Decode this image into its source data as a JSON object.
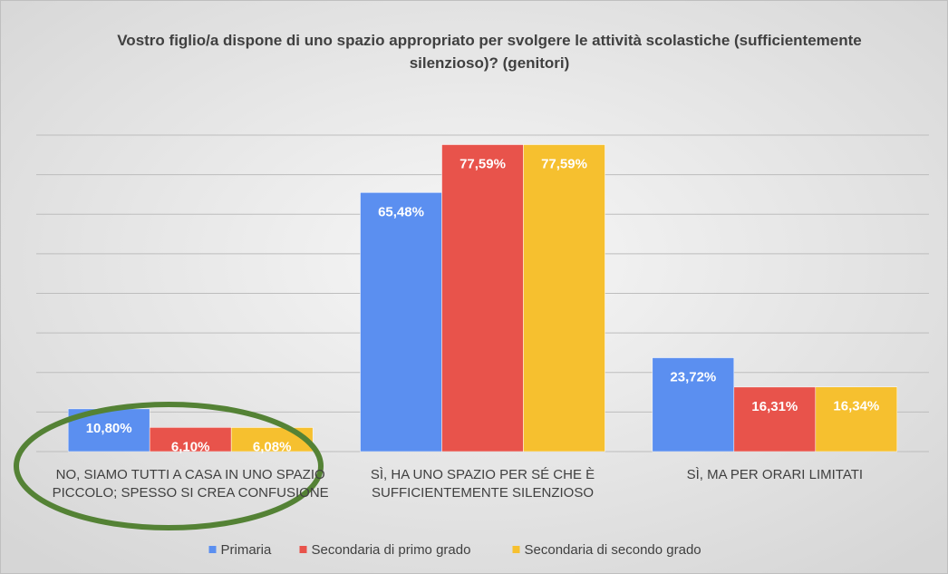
{
  "chart_data": {
    "type": "bar",
    "title": "Vostro figlio/a dispone di uno spazio appropriato per svolgere le attività scolastiche (sufficientemente silenzioso)?  (genitori)",
    "categories": [
      "NO, SIAMO TUTTI A CASA IN UNO SPAZIO PICCOLO; SPESSO SI CREA CONFUSIONE",
      "SÌ, HA UNO SPAZIO PER SÉ CHE È SUFFICIENTEMENTE SILENZIOSO",
      "SÌ, MA PER ORARI LIMITATI"
    ],
    "series": [
      {
        "name": "Primaria",
        "color": "#5b8ff0",
        "values": [
          10.8,
          65.48,
          23.72
        ],
        "value_labels": [
          "10,80%",
          "65,48%",
          "23,72%"
        ]
      },
      {
        "name": "Secondaria di primo grado",
        "color": "#e8534b",
        "values": [
          6.1,
          77.59,
          16.31
        ],
        "value_labels": [
          "6,10%",
          "77,59%",
          "16,31%"
        ]
      },
      {
        "name": "Secondaria di secondo grado",
        "color": "#f6c02f",
        "values": [
          6.08,
          77.59,
          16.34
        ],
        "value_labels": [
          "6,08%",
          "77,59%",
          "16,34%"
        ]
      }
    ],
    "ylim": [
      0,
      80
    ],
    "yticks": [
      0,
      10,
      20,
      30,
      40,
      50,
      60,
      70,
      80
    ],
    "grid": true,
    "legend": "bottom"
  }
}
